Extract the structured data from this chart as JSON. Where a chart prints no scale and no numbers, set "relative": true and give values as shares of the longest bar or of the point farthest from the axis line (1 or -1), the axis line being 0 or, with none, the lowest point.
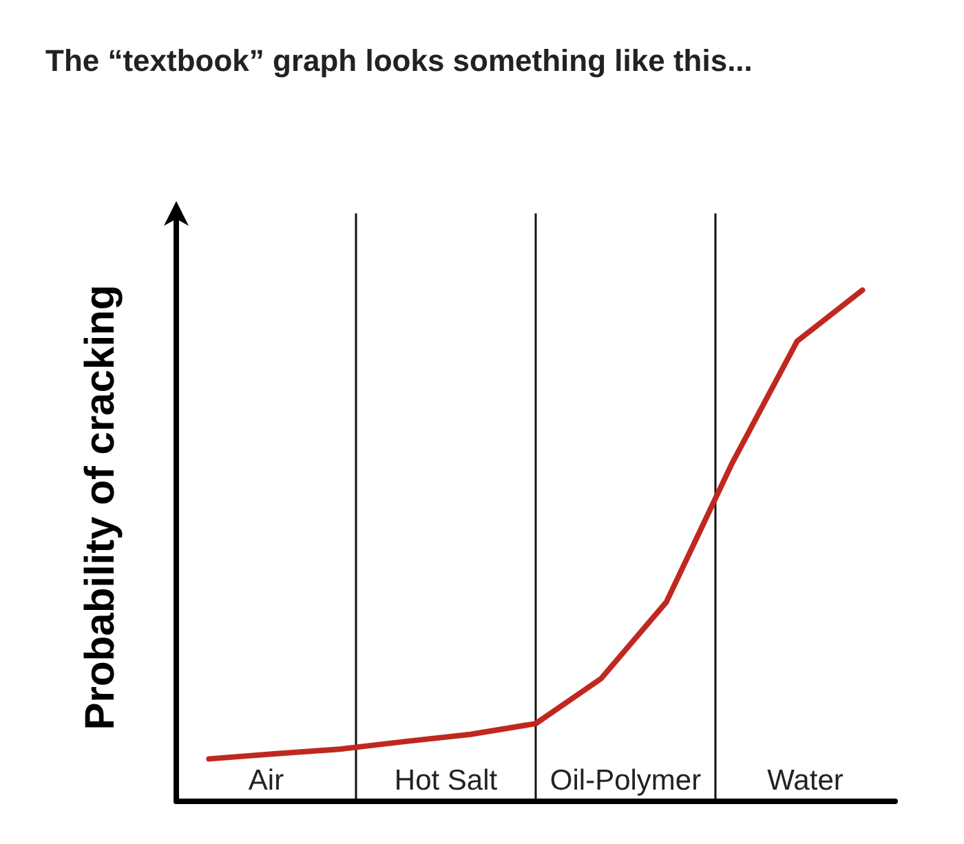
{
  "chart_data": {
    "type": "line",
    "title": "The “textbook” graph looks something like this...",
    "ylabel": "Probability of cracking",
    "relative": true,
    "grid": false,
    "marker": "none",
    "line_style": "solid",
    "categories": [
      null,
      null,
      null,
      null,
      null,
      null,
      null,
      null,
      null,
      null,
      null
    ],
    "series": [
      {
        "color": "#c0281f",
        "values": [
          0.083,
          0.093,
          0.102,
          0.117,
          0.131,
          0.152,
          0.24,
          0.39,
          0.66,
          0.9,
          1
        ]
      }
    ],
    "annotations": [
      "Air",
      "Hot Salt",
      "Oil-Polymer",
      "Water"
    ]
  }
}
